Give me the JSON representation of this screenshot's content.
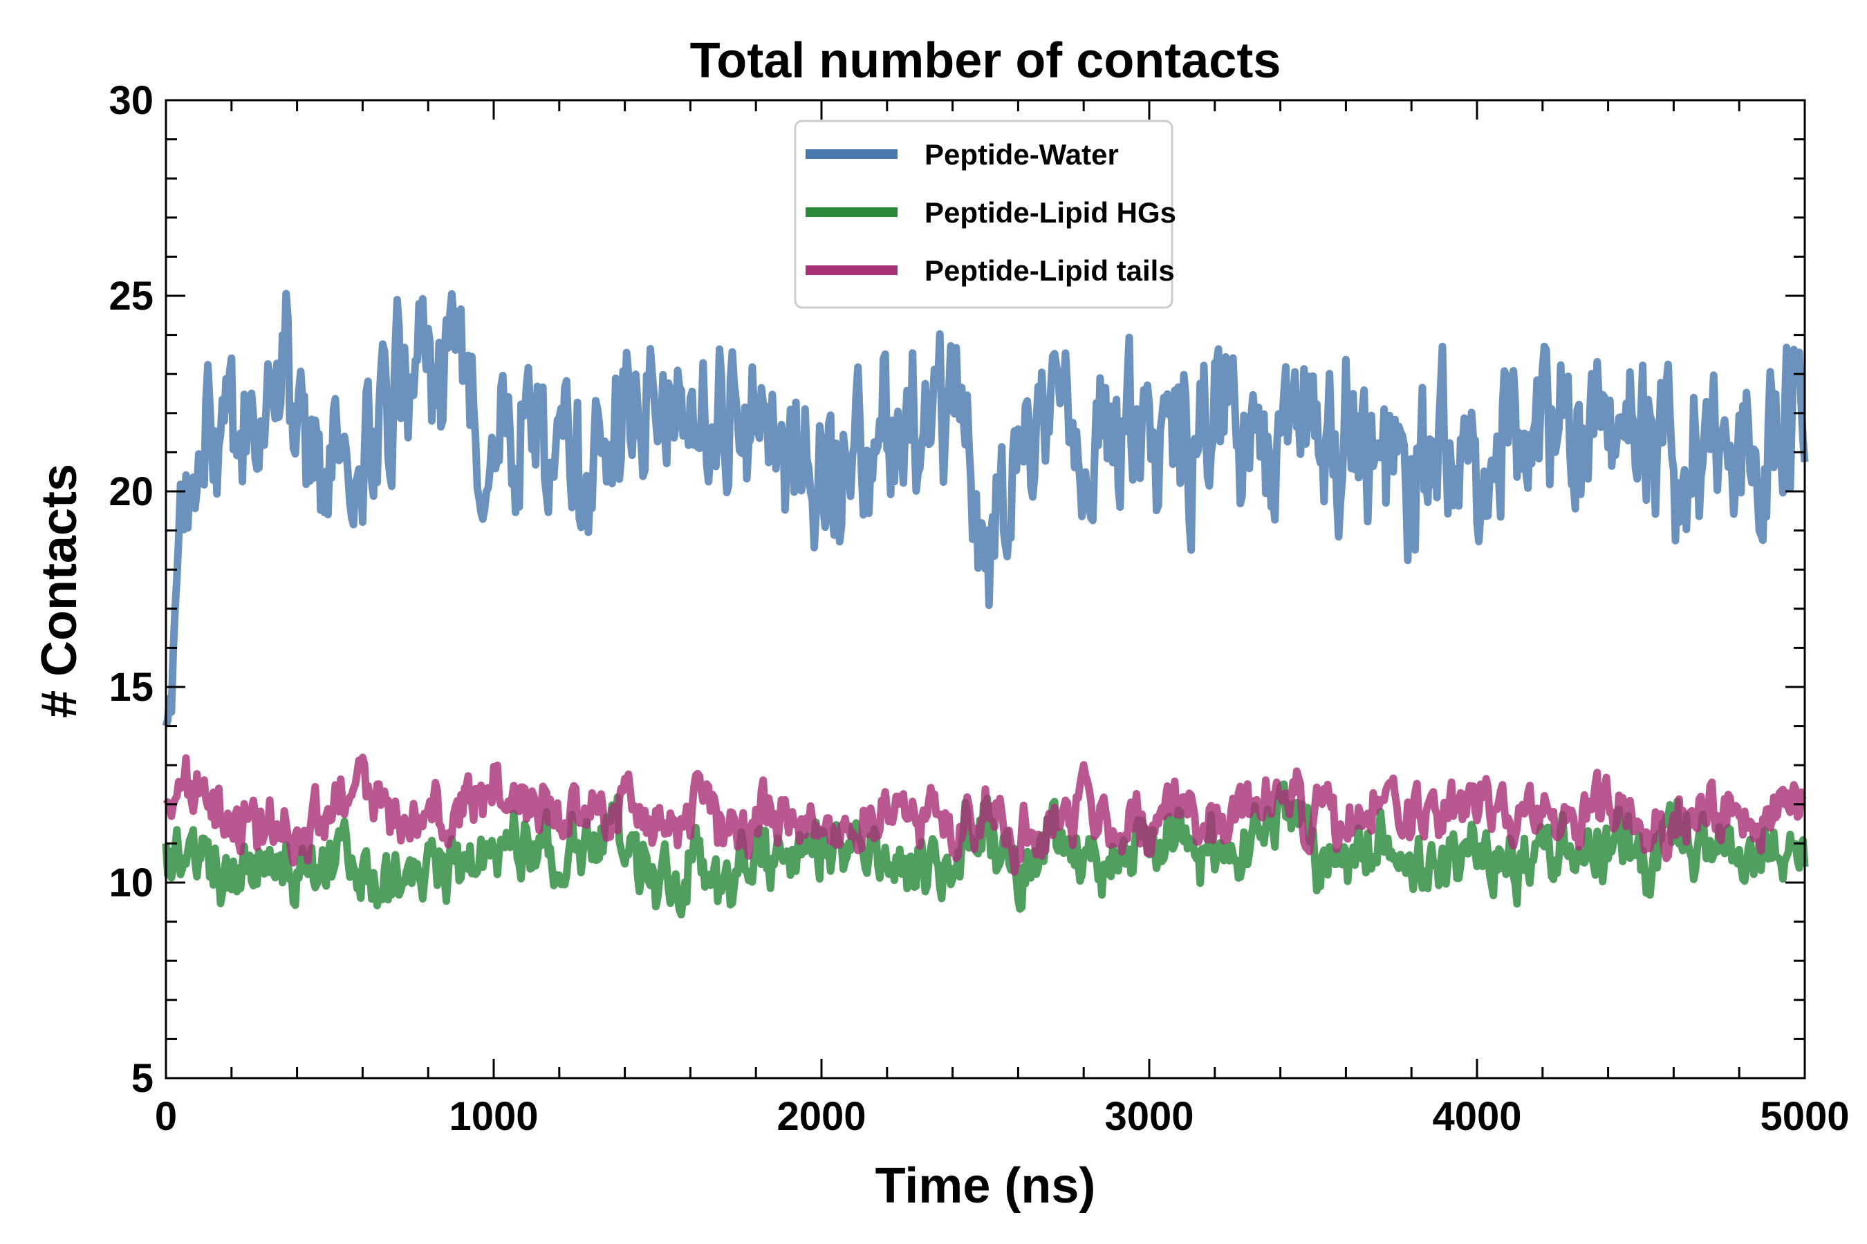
{
  "chart_data": {
    "type": "line",
    "title": "Total number of contacts",
    "xlabel": "Time (ns)",
    "ylabel": "# Contacts",
    "xlim": [
      0,
      5000
    ],
    "ylim": [
      5,
      30
    ],
    "x_ticks": [
      0,
      1000,
      2000,
      3000,
      4000,
      5000
    ],
    "y_ticks": [
      5,
      10,
      15,
      20,
      25,
      30
    ],
    "legend_position": "top-center",
    "grid": false,
    "series": [
      {
        "name": "Peptide-Water",
        "color": "#4a7aad",
        "x": [
          0,
          100,
          200,
          300,
          400,
          500,
          600,
          700,
          800,
          900,
          1000,
          1100,
          1200,
          1300,
          1400,
          1500,
          1600,
          1700,
          1800,
          1900,
          2000,
          2100,
          2200,
          2300,
          2400,
          2500,
          2600,
          2700,
          2800,
          2900,
          3000,
          3100,
          3200,
          3300,
          3400,
          3500,
          3600,
          3700,
          3800,
          3900,
          4000,
          4100,
          4200,
          4300,
          4400,
          4500,
          4600,
          4700,
          4800,
          4900,
          5000
        ],
        "values": [
          14.0,
          21.5,
          20.5,
          22.0,
          22.5,
          20.0,
          20.5,
          22.5,
          23.0,
          22.5,
          21.5,
          22.0,
          21.0,
          20.0,
          22.0,
          22.5,
          21.5,
          22.5,
          22.0,
          21.0,
          19.5,
          21.5,
          21.5,
          22.0,
          22.5,
          18.5,
          21.5,
          21.0,
          21.0,
          21.5,
          22.0,
          20.5,
          22.0,
          21.5,
          21.0,
          21.5,
          21.5,
          20.5,
          20.0,
          21.5,
          21.5,
          21.0,
          22.0,
          21.5,
          22.0,
          22.0,
          21.0,
          22.0,
          21.5,
          21.0,
          22.5
        ]
      },
      {
        "name": "Peptide-Lipid HGs",
        "color": "#2a8a3a",
        "x": [
          0,
          100,
          200,
          300,
          400,
          500,
          600,
          700,
          800,
          900,
          1000,
          1100,
          1200,
          1300,
          1400,
          1500,
          1600,
          1700,
          1800,
          1900,
          2000,
          2100,
          2200,
          2300,
          2400,
          2500,
          2600,
          2700,
          2800,
          2900,
          3000,
          3100,
          3200,
          3300,
          3400,
          3500,
          3600,
          3700,
          3800,
          3900,
          4000,
          4100,
          4200,
          4300,
          4400,
          4500,
          4600,
          4700,
          4800,
          4900,
          5000
        ],
        "values": [
          11.0,
          10.5,
          10.0,
          10.5,
          10.5,
          11.0,
          10.5,
          10.0,
          10.5,
          10.5,
          11.0,
          11.0,
          10.5,
          11.0,
          11.5,
          10.0,
          10.5,
          10.0,
          10.5,
          10.5,
          11.0,
          10.5,
          10.5,
          10.5,
          10.5,
          11.5,
          10.5,
          11.0,
          10.5,
          10.5,
          11.0,
          11.5,
          10.5,
          11.0,
          12.0,
          10.5,
          10.5,
          11.0,
          10.5,
          10.5,
          11.0,
          10.5,
          10.5,
          11.0,
          11.0,
          10.5,
          11.0,
          11.0,
          10.5,
          10.5,
          10.5
        ]
      },
      {
        "name": "Peptide-Lipid tails",
        "color": "#a83278",
        "x": [
          0,
          100,
          200,
          300,
          400,
          500,
          600,
          700,
          800,
          900,
          1000,
          1100,
          1200,
          1300,
          1400,
          1500,
          1600,
          1700,
          1800,
          1900,
          2000,
          2100,
          2200,
          2300,
          2400,
          2500,
          2600,
          2700,
          2800,
          2900,
          3000,
          3100,
          3200,
          3300,
          3400,
          3500,
          3600,
          3700,
          3800,
          3900,
          4000,
          4100,
          4200,
          4300,
          4400,
          4500,
          4600,
          4700,
          4800,
          4900,
          5000
        ],
        "values": [
          12.0,
          12.5,
          11.5,
          11.5,
          11.0,
          12.0,
          12.5,
          11.5,
          11.5,
          12.0,
          12.5,
          12.0,
          11.5,
          12.0,
          12.0,
          11.5,
          12.0,
          11.5,
          11.5,
          12.0,
          11.5,
          11.5,
          12.0,
          11.5,
          11.5,
          12.0,
          11.0,
          11.5,
          12.0,
          11.5,
          11.5,
          12.0,
          11.5,
          12.0,
          12.5,
          11.5,
          11.5,
          12.0,
          11.5,
          12.0,
          12.0,
          11.5,
          12.0,
          11.5,
          12.0,
          12.0,
          11.5,
          12.0,
          11.5,
          12.0,
          12.0
        ]
      }
    ]
  }
}
